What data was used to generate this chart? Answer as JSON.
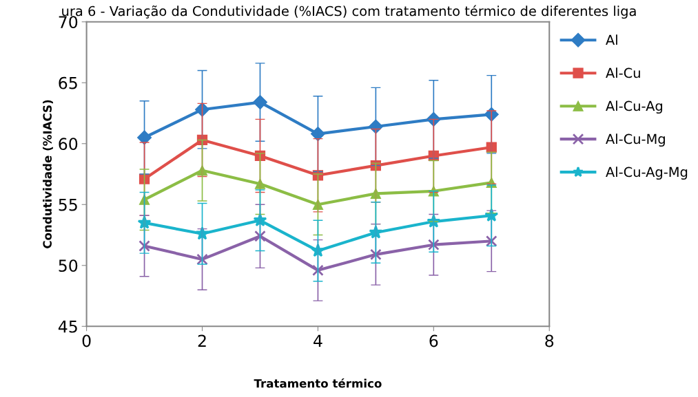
{
  "chart_data": {
    "type": "line",
    "title": "ura 6 - Variação da Condutividade (%IACS) com tratamento térmico de diferentes liga",
    "xlabel": "Tratamento térmico",
    "ylabel": "Condutividade (%IACS)",
    "x": [
      1,
      2,
      3,
      4,
      5,
      6,
      7
    ],
    "series": [
      {
        "name": "Al",
        "color": "#2e7cc4",
        "marker": "diamond",
        "values": [
          60.5,
          62.8,
          63.4,
          60.8,
          61.4,
          62.0,
          62.4
        ],
        "errors": [
          3,
          3.2,
          3.2,
          3.1,
          3.2,
          3.2,
          3.2
        ]
      },
      {
        "name": "Al-Cu",
        "color": "#df4f4a",
        "marker": "square",
        "values": [
          57.1,
          60.3,
          59.0,
          57.4,
          58.2,
          59.0,
          59.7
        ],
        "errors": [
          3,
          3,
          3,
          3,
          3,
          3,
          3
        ]
      },
      {
        "name": "Al-Cu-Ag",
        "color": "#8cbd45",
        "marker": "triangle",
        "values": [
          55.4,
          57.8,
          56.7,
          55.0,
          55.9,
          56.1,
          56.8
        ],
        "errors": [
          2.5,
          2.5,
          2.5,
          2.5,
          2.5,
          2.5,
          2.5
        ]
      },
      {
        "name": "Al-Cu-Mg",
        "color": "#8a62a8",
        "marker": "cross",
        "values": [
          51.6,
          50.5,
          52.4,
          49.6,
          50.9,
          51.7,
          52.0
        ],
        "errors": [
          2.5,
          2.5,
          2.6,
          2.5,
          2.5,
          2.5,
          2.5
        ]
      },
      {
        "name": "Al-Cu-Ag-Mg",
        "color": "#1ab4cc",
        "marker": "star",
        "values": [
          53.5,
          52.6,
          53.7,
          51.2,
          52.7,
          53.6,
          54.1
        ],
        "errors": [
          2.5,
          2.5,
          2.5,
          2.5,
          2.5,
          2.5,
          2.5
        ]
      }
    ],
    "xlim": [
      0,
      8
    ],
    "xticks": [
      0,
      2,
      4,
      6,
      8
    ],
    "ylim": [
      45,
      70
    ],
    "yticks": [
      45,
      50,
      55,
      60,
      65,
      70
    ],
    "grid": false,
    "legend": "right",
    "line_style": "solid"
  }
}
